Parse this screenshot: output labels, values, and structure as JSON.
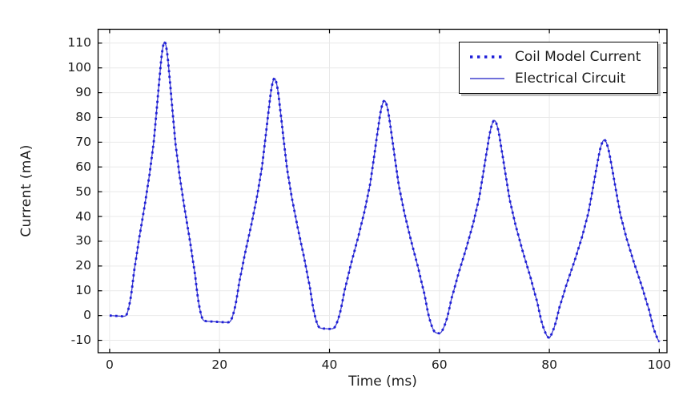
{
  "chart_data": {
    "type": "line",
    "title": "",
    "xlabel": "Time (ms)",
    "ylabel": "Current (mA)",
    "xlim": [
      -2.1,
      101.4
    ],
    "ylim": [
      -15,
      115.6
    ],
    "x_ticks": [
      0,
      20,
      40,
      60,
      80,
      100
    ],
    "y_ticks": [
      -10,
      0,
      10,
      20,
      30,
      40,
      50,
      60,
      70,
      80,
      90,
      100,
      110
    ],
    "grid": true,
    "legend_position": "top-right",
    "series": [
      {
        "name": "Coil Model Current",
        "style": "dotted",
        "color": "#1e1ed8",
        "line_width": 2.8
      },
      {
        "name": "Electrical Circuit",
        "style": "solid",
        "color": "#4040cd",
        "line_width": 1.3
      }
    ],
    "waveform": {
      "note": "Both series trace the same damped periodic coil-current pulse train.",
      "period_ms": 20,
      "peaks": [
        {
          "t": 10,
          "i": 110.5
        },
        {
          "t": 30,
          "i": 95.8
        },
        {
          "t": 50,
          "i": 86.8
        },
        {
          "t": 70,
          "i": 79.0
        },
        {
          "t": 90,
          "i": 72.0
        }
      ],
      "troughs": [
        {
          "t": 0,
          "i": 0.0
        },
        {
          "t": 20,
          "i": -2.6
        },
        {
          "t": 40,
          "i": -5.4
        },
        {
          "t": 60,
          "i": -7.2
        },
        {
          "t": 80,
          "i": -9.1
        },
        {
          "t": 100,
          "i": -10.6
        }
      ],
      "pulse_shape": [
        [
          0,
          0
        ],
        [
          0.05,
          0.01
        ],
        [
          0.095,
          0.07
        ],
        [
          0.135,
          0.166
        ],
        [
          0.195,
          0.284
        ],
        [
          0.26,
          0.401
        ],
        [
          0.32,
          0.519
        ],
        [
          0.37,
          0.636
        ],
        [
          0.405,
          0.752
        ],
        [
          0.44,
          0.87
        ],
        [
          0.47,
          0.962
        ],
        [
          0.5,
          1
        ],
        [
          0.53,
          0.962
        ],
        [
          0.56,
          0.87
        ],
        [
          0.595,
          0.752
        ],
        [
          0.63,
          0.636
        ],
        [
          0.68,
          0.519
        ],
        [
          0.74,
          0.401
        ],
        [
          0.805,
          0.284
        ],
        [
          0.865,
          0.166
        ],
        [
          0.905,
          0.07
        ],
        [
          0.95,
          0.01
        ],
        [
          1,
          0
        ]
      ],
      "pulse_width_scale": [
        0.76,
        0.88,
        1.0,
        1.07,
        1.12
      ],
      "samples_per_cycle": 160
    },
    "colors": {
      "grid": "#e9e9e9",
      "axis": "#000000",
      "text": "#1c1c1c",
      "background": "#ffffff"
    }
  }
}
